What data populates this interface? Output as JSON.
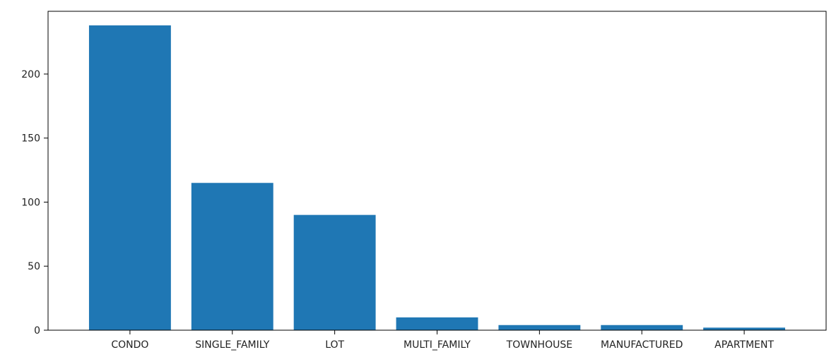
{
  "chart_data": {
    "type": "bar",
    "categories": [
      "CONDO",
      "SINGLE_FAMILY",
      "LOT",
      "MULTI_FAMILY",
      "TOWNHOUSE",
      "MANUFACTURED",
      "APARTMENT"
    ],
    "values": [
      238,
      115,
      90,
      10,
      4,
      4,
      2
    ],
    "yticks": [
      0,
      50,
      100,
      150,
      200
    ],
    "ylim": [
      0,
      249
    ],
    "bar_color": "#1f77b4",
    "axis_color": "#000000",
    "text_color": "#222222",
    "grid": false
  }
}
